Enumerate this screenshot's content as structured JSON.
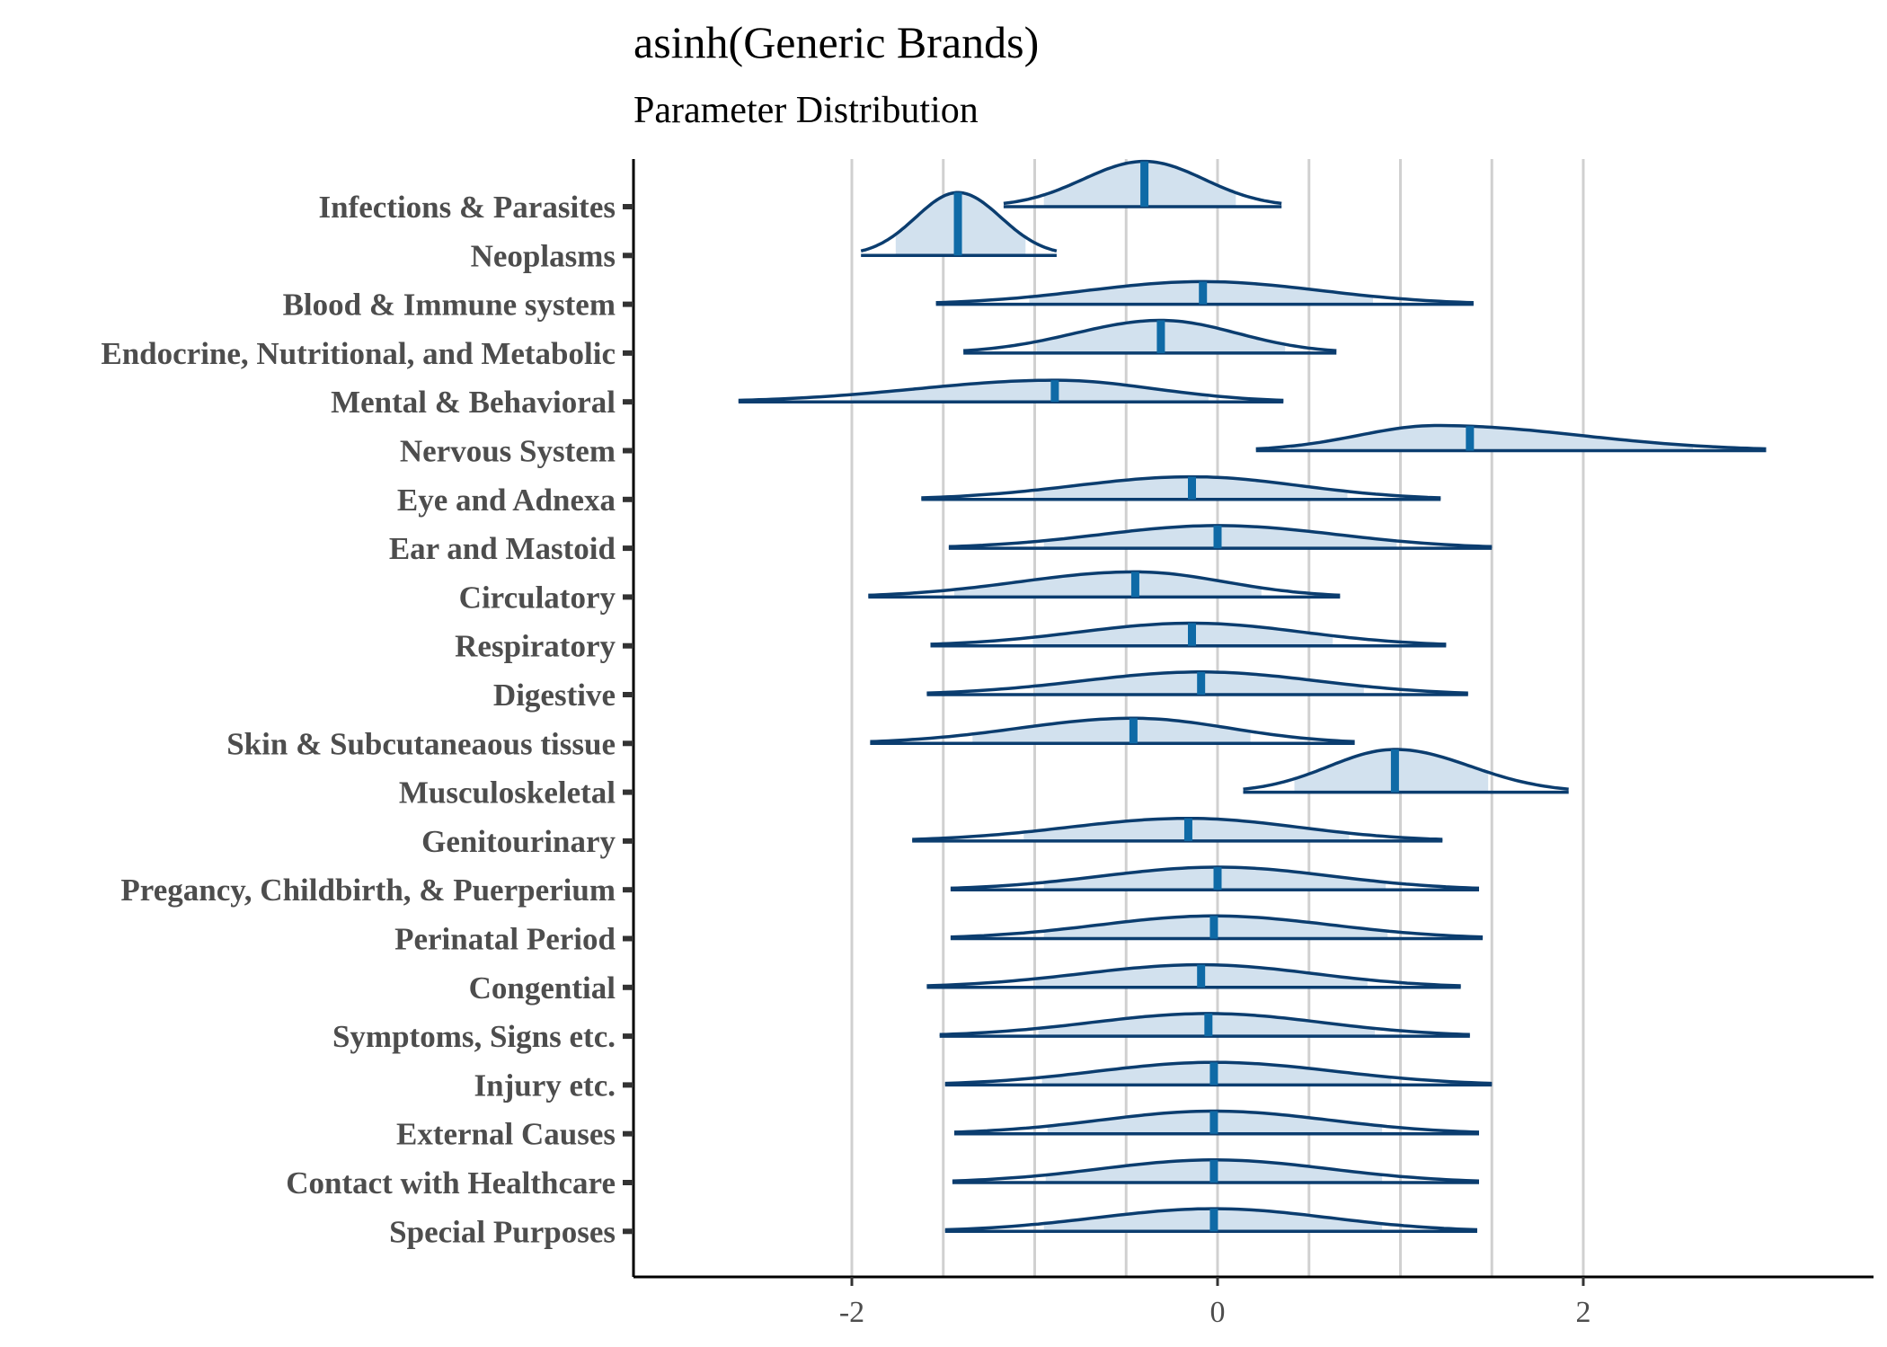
{
  "chart_data": {
    "type": "ridgeline",
    "title": "asinh(Generic Brands)",
    "subtitle": "Parameter Distribution",
    "xlabel": "",
    "ylabel": "",
    "xlim": [
      -3.2,
      3.55
    ],
    "x_ticks": [
      -2,
      0,
      2
    ],
    "x_tick_labels": [
      "-2",
      "0",
      "2"
    ],
    "grid_x": [
      -2,
      -1.5,
      -1,
      -0.5,
      0,
      0.5,
      1,
      1.5,
      2
    ],
    "legend": "none",
    "colors": {
      "line": "#0b3d6f",
      "fill": "#d2e1ee",
      "median": "#0f6aa6",
      "grid": "#d0d0d0",
      "axis": "#000000",
      "tick_label": "#4d4d4d"
    },
    "categories": [
      "Infections & Parasites",
      "Neoplasms",
      "Blood & Immune system",
      "Endocrine, Nutritional, and Metabolic",
      "Mental & Behavioral",
      "Nervous System",
      "Eye and Adnexa",
      "Ear and Mastoid",
      "Circulatory",
      "Respiratory",
      "Digestive",
      "Skin & Subcutaneaous tissue",
      "Musculoskeletal",
      "Genitourinary",
      "Pregancy, Childbirth, & Puerperium",
      "Perinatal Period",
      "Congential",
      "Symptoms, Signs etc.",
      "Injury etc.",
      "External Causes",
      "Contact with Healthcare",
      "Special Purposes"
    ],
    "distributions": [
      {
        "min": -1.17,
        "max": 0.35,
        "median": -0.4,
        "q_low": -0.95,
        "q_high": 0.1,
        "peak": -0.4,
        "density": 0.9
      },
      {
        "min": -1.95,
        "max": -0.88,
        "median": -1.42,
        "q_low": -1.76,
        "q_high": -1.05,
        "peak": -1.42,
        "density": 1.25
      },
      {
        "min": -1.54,
        "max": 1.4,
        "median": -0.08,
        "q_low": -1.03,
        "q_high": 0.85,
        "peak": -0.08,
        "density": 0.45
      },
      {
        "min": -1.39,
        "max": 0.65,
        "median": -0.31,
        "q_low": -0.99,
        "q_high": 0.37,
        "peak": -0.31,
        "density": 0.65
      },
      {
        "min": -2.62,
        "max": 0.36,
        "median": -0.89,
        "q_low": -2.0,
        "q_high": -0.05,
        "peak": -0.89,
        "density": 0.43
      },
      {
        "min": 0.21,
        "max": 3.0,
        "median": 1.38,
        "q_low": 0.4,
        "q_high": 2.6,
        "peak": 1.2,
        "density": 0.5
      },
      {
        "min": -1.62,
        "max": 1.22,
        "median": -0.14,
        "q_low": -1.0,
        "q_high": 0.71,
        "peak": -0.14,
        "density": 0.45
      },
      {
        "min": -1.47,
        "max": 1.5,
        "median": 0.0,
        "q_low": -0.95,
        "q_high": 0.98,
        "peak": 0.0,
        "density": 0.45
      },
      {
        "min": -1.91,
        "max": 0.67,
        "median": -0.45,
        "q_low": -1.44,
        "q_high": 0.24,
        "peak": -0.45,
        "density": 0.5
      },
      {
        "min": -1.57,
        "max": 1.25,
        "median": -0.14,
        "q_low": -1.01,
        "q_high": 0.63,
        "peak": -0.14,
        "density": 0.45
      },
      {
        "min": -1.59,
        "max": 1.37,
        "median": -0.09,
        "q_low": -1.0,
        "q_high": 0.8,
        "peak": -0.09,
        "density": 0.45
      },
      {
        "min": -1.9,
        "max": 0.75,
        "median": -0.46,
        "q_low": -1.34,
        "q_high": 0.18,
        "peak": -0.46,
        "density": 0.5
      },
      {
        "min": 0.14,
        "max": 1.92,
        "median": 0.97,
        "q_low": 0.42,
        "q_high": 1.48,
        "peak": 0.97,
        "density": 0.85
      },
      {
        "min": -1.67,
        "max": 1.23,
        "median": -0.16,
        "q_low": -1.06,
        "q_high": 0.72,
        "peak": -0.16,
        "density": 0.45
      },
      {
        "min": -1.46,
        "max": 1.43,
        "median": 0.0,
        "q_low": -0.95,
        "q_high": 0.92,
        "peak": 0.0,
        "density": 0.45
      },
      {
        "min": -1.46,
        "max": 1.45,
        "median": -0.02,
        "q_low": -0.95,
        "q_high": 0.93,
        "peak": -0.02,
        "density": 0.45
      },
      {
        "min": -1.59,
        "max": 1.33,
        "median": -0.09,
        "q_low": -1.0,
        "q_high": 0.82,
        "peak": -0.09,
        "density": 0.45
      },
      {
        "min": -1.52,
        "max": 1.38,
        "median": -0.05,
        "q_low": -0.98,
        "q_high": 0.86,
        "peak": -0.05,
        "density": 0.45
      },
      {
        "min": -1.49,
        "max": 1.5,
        "median": -0.02,
        "q_low": -0.96,
        "q_high": 0.95,
        "peak": -0.02,
        "density": 0.45
      },
      {
        "min": -1.44,
        "max": 1.43,
        "median": -0.02,
        "q_low": -0.93,
        "q_high": 0.9,
        "peak": -0.02,
        "density": 0.45
      },
      {
        "min": -1.45,
        "max": 1.43,
        "median": -0.02,
        "q_low": -0.94,
        "q_high": 0.9,
        "peak": -0.02,
        "density": 0.45
      },
      {
        "min": -1.49,
        "max": 1.42,
        "median": -0.02,
        "q_low": -0.95,
        "q_high": 0.9,
        "peak": -0.02,
        "density": 0.45
      }
    ]
  }
}
